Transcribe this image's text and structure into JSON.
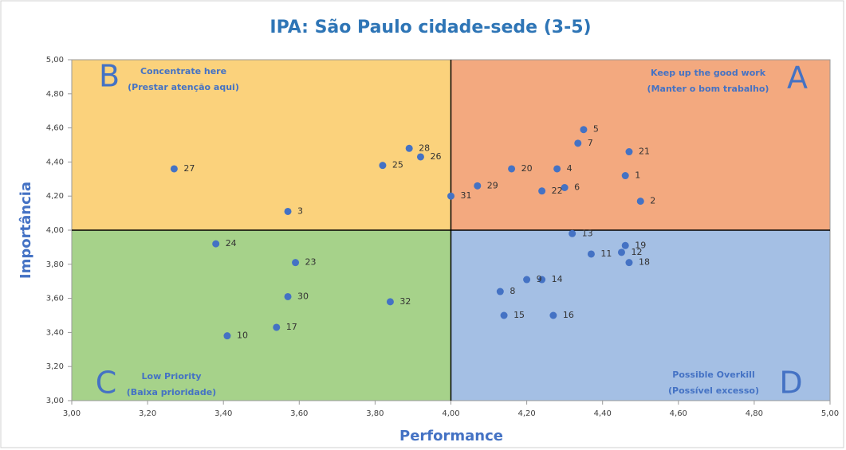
{
  "chart_data": {
    "type": "scatter",
    "title": "IPA: São Paulo cidade-sede (3-5)",
    "x_label": "Performance",
    "y_label": "Importância",
    "xlim": [
      3,
      5
    ],
    "ylim": [
      3,
      5
    ],
    "xticks": [
      {
        "value": 3,
        "label": "3,00"
      },
      {
        "value": 3.2,
        "label": "3,20"
      },
      {
        "value": 3.4,
        "label": "3,40"
      },
      {
        "value": 3.6,
        "label": "3,60"
      },
      {
        "value": 3.8,
        "label": "3,80"
      },
      {
        "value": 4,
        "label": "4,00"
      },
      {
        "value": 4.2,
        "label": "4,20"
      },
      {
        "value": 4.4,
        "label": "4,40"
      },
      {
        "value": 4.6,
        "label": "4,60"
      },
      {
        "value": 4.8,
        "label": "4,80"
      },
      {
        "value": 5,
        "label": "5,00"
      }
    ],
    "yticks": [
      {
        "value": 3,
        "label": "3,00"
      },
      {
        "value": 3.2,
        "label": "3,20"
      },
      {
        "value": 3.4,
        "label": "3,40"
      },
      {
        "value": 3.6,
        "label": "3,60"
      },
      {
        "value": 3.8,
        "label": "3,80"
      },
      {
        "value": 4,
        "label": "4,00"
      },
      {
        "value": 4.2,
        "label": "4,20"
      },
      {
        "value": 4.4,
        "label": "4,40"
      },
      {
        "value": 4.6,
        "label": "4,60"
      },
      {
        "value": 4.8,
        "label": "4,80"
      },
      {
        "value": 5,
        "label": "5,00"
      }
    ],
    "x_split": 4,
    "y_split": 4,
    "quadrants": [
      {
        "letter": "B",
        "title": "Concentrate here",
        "subtitle": "(Prestar atenção aqui)",
        "color": "#fbd27c"
      },
      {
        "letter": "A",
        "title": "Keep up the good work",
        "subtitle": "(Manter o bom trabalho)",
        "color": "#f3a97f"
      },
      {
        "letter": "C",
        "title": "Low Priority",
        "subtitle": "(Baixa prioridade)",
        "color": "#a6d28a"
      },
      {
        "letter": "D",
        "title": "Possible Overkill",
        "subtitle": "(Possível excesso)",
        "color": "#a4bfe4"
      }
    ],
    "color": "#4472c4",
    "labels": [
      "5",
      "7",
      "21",
      "1",
      "2",
      "20",
      "4",
      "6",
      "22",
      "29",
      "31",
      "28",
      "26",
      "25",
      "27",
      "3",
      "13",
      "19",
      "12",
      "11",
      "18",
      "14",
      "9",
      "8",
      "15",
      "16",
      "24",
      "23",
      "30",
      "32",
      "17",
      "10"
    ],
    "x": [
      4.35,
      4.335,
      4.47,
      4.46,
      4.5,
      4.16,
      4.28,
      4.3,
      4.24,
      4.07,
      4.0,
      3.89,
      3.92,
      3.82,
      3.27,
      3.57,
      4.32,
      4.46,
      4.45,
      4.37,
      4.47,
      4.24,
      4.2,
      4.13,
      4.14,
      4.27,
      3.38,
      3.59,
      3.57,
      3.84,
      3.54,
      3.41
    ],
    "y": [
      4.59,
      4.51,
      4.46,
      4.32,
      4.17,
      4.36,
      4.36,
      4.25,
      4.23,
      4.26,
      4.2,
      4.48,
      4.43,
      4.38,
      4.36,
      4.11,
      3.98,
      3.91,
      3.87,
      3.86,
      3.81,
      3.71,
      3.71,
      3.64,
      3.5,
      3.5,
      3.92,
      3.81,
      3.61,
      3.58,
      3.43,
      3.38
    ]
  }
}
